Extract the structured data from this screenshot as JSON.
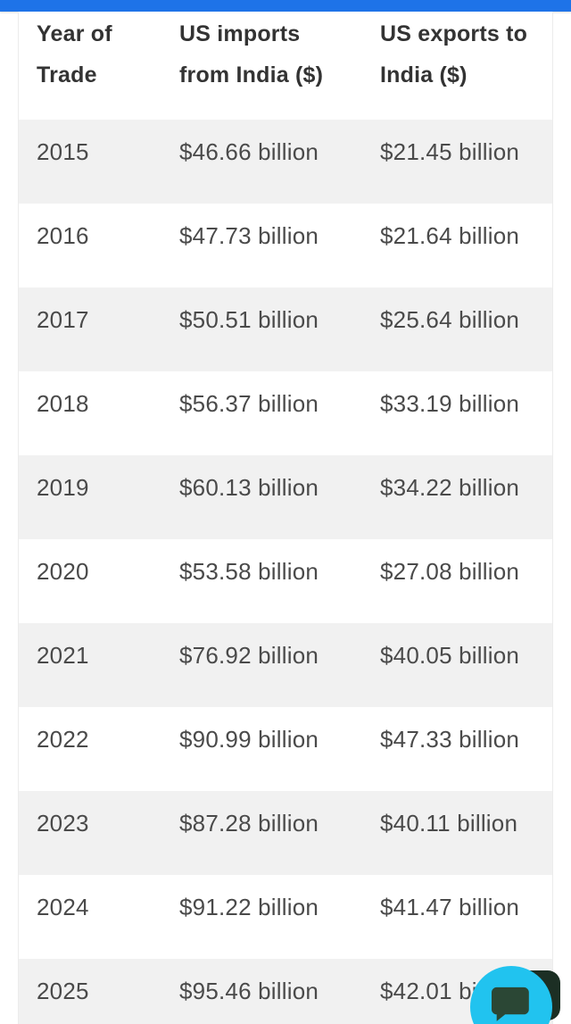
{
  "colors": {
    "accent_blue": "#1e73e8",
    "row_shade": "#f1f1f1",
    "chat_bubble_bg": "#21c3ef",
    "chat_icon_color": "#2b4735",
    "chat_secondary_bg": "#1c2f24",
    "header_text": "#333333",
    "body_text": "#4a4a4a"
  },
  "table": {
    "headers": [
      "Year of\nTrade",
      "US imports\nfrom India ($)",
      "US exports to\nIndia ($)"
    ],
    "rows": [
      {
        "year": "2015",
        "imports": "$46.66 billion",
        "exports": "$21.45 billion"
      },
      {
        "year": "2016",
        "imports": "$47.73 billion",
        "exports": "$21.64 billion"
      },
      {
        "year": "2017",
        "imports": "$50.51 billion",
        "exports": "$25.64 billion"
      },
      {
        "year": "2018",
        "imports": "$56.37 billion",
        "exports": "$33.19 billion"
      },
      {
        "year": "2019",
        "imports": "$60.13 billion",
        "exports": "$34.22 billion"
      },
      {
        "year": "2020",
        "imports": "$53.58 billion",
        "exports": "$27.08 billion"
      },
      {
        "year": "2021",
        "imports": "$76.92 billion",
        "exports": "$40.05 billion"
      },
      {
        "year": "2022",
        "imports": "$90.99 billion",
        "exports": "$47.33 billion"
      },
      {
        "year": "2023",
        "imports": "$87.28 billion",
        "exports": "$40.11 billion"
      },
      {
        "year": "2024",
        "imports": "$91.22 billion",
        "exports": "$41.47 billion"
      },
      {
        "year": "2025",
        "imports": "$95.46 billion",
        "exports": "$42.01 billion"
      }
    ]
  },
  "chat_widget": {
    "icon": "chat-bubble-icon"
  }
}
